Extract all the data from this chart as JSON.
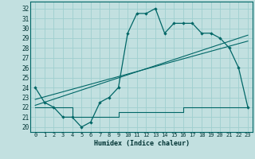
{
  "xlabel": "Humidex (Indice chaleur)",
  "background_color": "#c2e0e0",
  "grid_color": "#9fcfcf",
  "line_color": "#006666",
  "xlim": [
    -0.5,
    23.5
  ],
  "ylim": [
    19.5,
    32.7
  ],
  "xticks": [
    0,
    1,
    2,
    3,
    4,
    5,
    6,
    7,
    8,
    9,
    10,
    11,
    12,
    13,
    14,
    15,
    16,
    17,
    18,
    19,
    20,
    21,
    22,
    23
  ],
  "yticks": [
    20,
    21,
    22,
    23,
    24,
    25,
    26,
    27,
    28,
    29,
    30,
    31,
    32
  ],
  "line1_x": [
    0,
    1,
    2,
    3,
    4,
    5,
    6,
    7,
    8,
    9,
    10,
    11,
    12,
    13,
    14,
    15,
    16,
    17,
    18,
    19,
    20,
    21,
    22,
    23
  ],
  "line1_y": [
    24.0,
    22.5,
    22.0,
    21.0,
    21.0,
    20.0,
    20.5,
    22.5,
    23.0,
    24.0,
    29.5,
    31.5,
    31.5,
    32.0,
    29.5,
    30.5,
    30.5,
    30.5,
    29.5,
    29.5,
    29.0,
    28.0,
    26.0,
    22.0
  ],
  "line2_x": [
    0,
    1,
    2,
    3,
    4,
    5,
    6,
    7,
    8,
    9,
    10,
    11,
    12,
    13,
    14,
    15,
    16,
    17,
    18,
    19,
    20,
    21,
    22,
    23
  ],
  "line2_y": [
    22.0,
    22.0,
    22.0,
    22.0,
    21.0,
    21.0,
    21.0,
    21.0,
    21.0,
    21.5,
    21.5,
    21.5,
    21.5,
    21.5,
    21.5,
    21.5,
    22.0,
    22.0,
    22.0,
    22.0,
    22.0,
    22.0,
    22.0,
    22.0
  ],
  "line3_x": [
    0,
    23
  ],
  "line3_y": [
    22.2,
    29.3
  ],
  "line4_x": [
    0,
    23
  ],
  "line4_y": [
    22.8,
    28.7
  ]
}
